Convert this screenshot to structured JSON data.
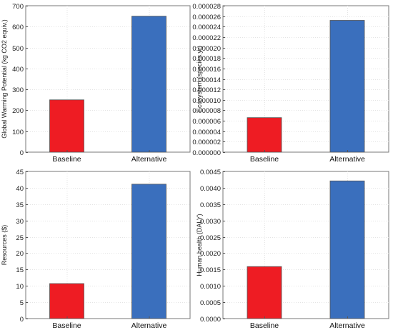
{
  "chart_data": [
    {
      "id": "gwp",
      "type": "bar",
      "categories": [
        "Baseline",
        "Alternative"
      ],
      "values": [
        250,
        650
      ],
      "ylabel": "Global Warming Potential (kg CO2 equiv.)",
      "ylim": [
        0,
        700
      ],
      "yticks": [
        "0",
        "100",
        "200",
        "300",
        "400",
        "500",
        "600",
        "700"
      ],
      "colors": [
        "#ee1c23",
        "#3a6fbd"
      ],
      "grid": true
    },
    {
      "id": "eco",
      "type": "bar",
      "categories": [
        "Baseline",
        "Alternative"
      ],
      "values": [
        6.6e-06,
        2.52e-05
      ],
      "ylabel": "Ecosystem (species.yr)",
      "ylim": [
        0,
        2.8e-05
      ],
      "yticks": [
        "0.000000",
        "0.000002",
        "0.000004",
        "0.000006",
        "0.000008",
        "0.000010",
        "0.000012",
        "0.000014",
        "0.000016",
        "0.000018",
        "0.000020",
        "0.000022",
        "0.000024",
        "0.000026",
        "0.000028"
      ],
      "colors": [
        "#ee1c23",
        "#3a6fbd"
      ],
      "grid": true
    },
    {
      "id": "res",
      "type": "bar",
      "categories": [
        "Baseline",
        "Alternative"
      ],
      "values": [
        10.7,
        41.1
      ],
      "ylabel": "Resources ($)",
      "ylim": [
        0,
        45
      ],
      "yticks": [
        "0",
        "5",
        "10",
        "15",
        "20",
        "25",
        "30",
        "35",
        "40",
        "45"
      ],
      "colors": [
        "#ee1c23",
        "#3a6fbd"
      ],
      "grid": true
    },
    {
      "id": "hh",
      "type": "bar",
      "categories": [
        "Baseline",
        "Alternative"
      ],
      "values": [
        0.00159,
        0.00421
      ],
      "ylabel": "Human health (DALY)",
      "ylim": [
        0,
        0.0045
      ],
      "yticks": [
        "0.0000",
        "0.0005",
        "0.0010",
        "0.0015",
        "0.0020",
        "0.0025",
        "0.0030",
        "0.0035",
        "0.0040",
        "0.0045"
      ],
      "colors": [
        "#ee1c23",
        "#3a6fbd"
      ],
      "grid": true
    }
  ]
}
